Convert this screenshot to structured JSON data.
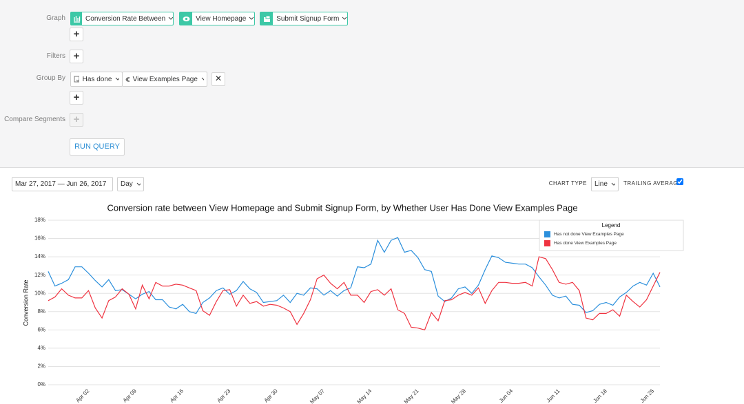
{
  "query": {
    "graph_label": "Graph",
    "graph_items": [
      "Conversion Rate Between",
      "View Homepage",
      "Submit Signup Form"
    ],
    "filters_label": "Filters",
    "group_by_label": "Group By",
    "group_by_items": [
      "Has done",
      "View Examples Page"
    ],
    "compare_label": "Compare Segments",
    "run_button": "RUN QUERY"
  },
  "controls": {
    "date_range": "Mar 27, 2017 — Jun 26, 2017",
    "interval": "Day",
    "chart_type_label": "CHART TYPE",
    "chart_type": "Line",
    "trailing_average_label": "TRAILING AVERAGE"
  },
  "chart_data": {
    "type": "line",
    "title": "Conversion rate between View Homepage and Submit Signup Form, by Whether User Has Done View Examples Page",
    "y_label": "Conversion Rate",
    "legend_title": "Legend",
    "legend": "top-right",
    "grid": true,
    "categories": [
      null,
      null,
      null,
      null,
      null,
      null,
      "Apr 02",
      null,
      null,
      null,
      null,
      null,
      null,
      "Apr 09",
      null,
      null,
      null,
      null,
      null,
      null,
      "Apr 16",
      null,
      null,
      null,
      null,
      null,
      null,
      "Apr 23",
      null,
      null,
      null,
      null,
      null,
      null,
      "Apr 30",
      null,
      null,
      null,
      null,
      null,
      null,
      "May 07",
      null,
      null,
      null,
      null,
      null,
      null,
      "May 14",
      null,
      null,
      null,
      null,
      null,
      null,
      "May 21",
      null,
      null,
      null,
      null,
      null,
      null,
      "May 28",
      null,
      null,
      null,
      null,
      null,
      null,
      "Jun 04",
      null,
      null,
      null,
      null,
      null,
      null,
      "Jun 11",
      null,
      null,
      null,
      null,
      null,
      null,
      "Jun 18",
      null,
      null,
      null,
      null,
      null,
      null,
      "Jun 25",
      null
    ],
    "ylim": [
      0,
      18
    ],
    "yticks": [
      {
        "value": 0,
        "label": "0%"
      },
      {
        "value": 2,
        "label": "2%"
      },
      {
        "value": 4,
        "label": "4%"
      },
      {
        "value": 6,
        "label": "6%"
      },
      {
        "value": 8,
        "label": "8%"
      },
      {
        "value": 10,
        "label": "10%"
      },
      {
        "value": 12,
        "label": "12%"
      },
      {
        "value": 14,
        "label": "14%"
      },
      {
        "value": 16,
        "label": "16%"
      },
      {
        "value": 18,
        "label": "18%"
      }
    ],
    "series": [
      {
        "name": "Has not done View Examples Page",
        "color": "#2b8fdc",
        "values": [
          12.4,
          10.8,
          11.1,
          11.5,
          12.9,
          12.9,
          12.2,
          11.4,
          10.7,
          11.5,
          10.3,
          10.4,
          9.9,
          9.4,
          9.9,
          10.2,
          9.3,
          9.3,
          8.5,
          8.3,
          8.8,
          8.0,
          7.8,
          9.0,
          9.5,
          10.3,
          10.6,
          9.9,
          10.3,
          11.3,
          10.5,
          10.1,
          9.0,
          9.1,
          9.2,
          9.8,
          9.0,
          10.0,
          9.8,
          10.6,
          10.5,
          9.8,
          10.3,
          9.7,
          10.3,
          10.6,
          12.9,
          12.8,
          13.2,
          15.8,
          14.5,
          15.8,
          16.1,
          14.5,
          14.7,
          13.9,
          12.6,
          12.4,
          9.7,
          9.1,
          9.5,
          10.5,
          10.7,
          10.0,
          10.9,
          12.6,
          14.1,
          13.9,
          13.4,
          13.3,
          13.2,
          13.2,
          12.8,
          11.8,
          10.9,
          9.8,
          9.5,
          9.7,
          8.8,
          8.7,
          7.9,
          8.1,
          8.8,
          9.0,
          8.7,
          9.6,
          10.1,
          10.8,
          11.2,
          10.9,
          12.2,
          10.7
        ]
      },
      {
        "name": "Has done View Examples Page",
        "color": "#ef3340",
        "values": [
          9.2,
          9.6,
          10.5,
          9.8,
          9.5,
          9.5,
          10.3,
          8.4,
          7.3,
          9.2,
          9.6,
          10.5,
          9.9,
          8.3,
          10.9,
          9.4,
          11.2,
          10.8,
          10.8,
          11.0,
          10.9,
          10.6,
          10.3,
          8.1,
          7.6,
          9.1,
          10.3,
          10.4,
          8.6,
          9.8,
          8.9,
          9.1,
          8.6,
          8.8,
          8.7,
          8.4,
          8.0,
          6.6,
          7.8,
          9.3,
          11.6,
          12.0,
          11.1,
          10.5,
          11.2,
          9.8,
          9.8,
          9.0,
          10.2,
          10.4,
          9.8,
          10.5,
          8.2,
          7.8,
          6.3,
          6.2,
          6.0,
          7.9,
          7.0,
          9.2,
          9.3,
          9.8,
          10.1,
          9.8,
          10.6,
          8.9,
          10.3,
          11.2,
          11.2,
          11.1,
          11.1,
          11.2,
          10.8,
          14.0,
          13.8,
          12.6,
          11.2,
          11.0,
          11.2,
          10.3,
          7.3,
          7.1,
          7.8,
          7.8,
          8.2,
          7.5,
          9.8,
          9.1,
          8.5,
          9.3,
          10.8,
          12.3
        ]
      }
    ]
  }
}
